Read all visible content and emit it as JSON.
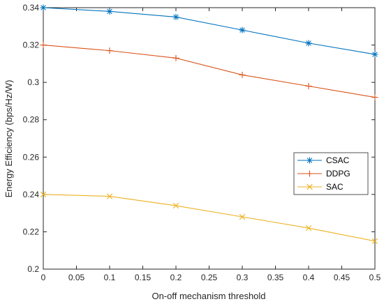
{
  "chart_data": {
    "type": "line",
    "title": "",
    "xlabel": "On-off mechanism threshold",
    "ylabel": "Energy Efficiency (bps/Hz/W)",
    "xlim": [
      0,
      0.5
    ],
    "ylim": [
      0.2,
      0.34
    ],
    "x_ticks": [
      "0",
      "0.05",
      "0.1",
      "0.15",
      "0.2",
      "0.25",
      "0.3",
      "0.35",
      "0.4",
      "0.45",
      "0.5"
    ],
    "y_ticks": [
      "0.2",
      "0.22",
      "0.24",
      "0.26",
      "0.28",
      "0.3",
      "0.32",
      "0.34"
    ],
    "grid": false,
    "legend_position": "right",
    "x": [
      0,
      0.1,
      0.2,
      0.3,
      0.4,
      0.5
    ],
    "series": [
      {
        "name": "CSAC",
        "values": [
          0.34,
          0.338,
          0.335,
          0.328,
          0.321,
          0.315
        ],
        "color": "#0072BD",
        "marker": "asterisk"
      },
      {
        "name": "DDPG",
        "values": [
          0.32,
          0.317,
          0.313,
          0.304,
          0.298,
          0.292
        ],
        "color": "#D95319",
        "marker": "plus"
      },
      {
        "name": "SAC",
        "values": [
          0.24,
          0.239,
          0.234,
          0.228,
          0.222,
          0.215
        ],
        "color": "#EDB120",
        "marker": "cross"
      }
    ]
  }
}
